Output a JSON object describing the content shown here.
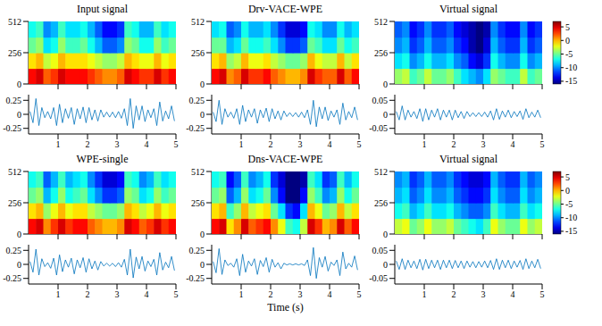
{
  "x_label": "Time (s)",
  "colorbar": {
    "range": [
      -16,
      7
    ],
    "ticks": [
      5,
      0,
      -5,
      -10,
      -15
    ]
  },
  "time_bins": [
    0,
    0.25,
    0.5,
    0.75,
    1,
    1.25,
    1.5,
    1.75,
    2,
    2.25,
    2.5,
    2.75,
    3,
    3.25,
    3.5,
    3.75,
    4,
    4.25,
    4.5,
    4.75,
    5
  ],
  "frequency_bins": [
    0,
    128,
    256,
    384,
    512
  ],
  "waveform_time": [
    0.05,
    0.15,
    0.25,
    0.35,
    0.45,
    0.55,
    0.65,
    0.75,
    0.85,
    0.95,
    1.05,
    1.15,
    1.25,
    1.35,
    1.45,
    1.55,
    1.65,
    1.75,
    1.85,
    1.95,
    2.05,
    2.15,
    2.25,
    2.35,
    2.45,
    2.55,
    2.65,
    2.75,
    2.85,
    2.95,
    3.05,
    3.15,
    3.25,
    3.35,
    3.45,
    3.55,
    3.65,
    3.75,
    3.85,
    3.95,
    4.05,
    4.15,
    4.25,
    4.35,
    4.45,
    4.55,
    4.65,
    4.75,
    4.85,
    4.95
  ],
  "chart_data": [
    {
      "title": "Input signal",
      "spectrogram": {
        "type": "heatmap",
        "xlim": [
          0,
          5
        ],
        "xticks": [
          1,
          2,
          3,
          4,
          5
        ],
        "ylim": [
          0,
          512
        ],
        "yticks": [
          0,
          256,
          512
        ],
        "tick_labels": "y",
        "cells": [
          [
            4,
            5,
            2,
            3,
            5,
            4,
            4,
            4,
            3,
            2,
            1,
            1,
            2,
            5,
            4,
            3,
            3,
            5,
            3,
            4
          ],
          [
            -1,
            0,
            -3,
            -2,
            0,
            -1,
            -1,
            -1,
            -2,
            -3,
            -4,
            -4,
            -3,
            0,
            -1,
            -2,
            -2,
            0,
            -2,
            -1
          ],
          [
            -5,
            -4,
            -8,
            -7,
            -4,
            -6,
            -6,
            -5,
            -7,
            -9,
            -11,
            -11,
            -10,
            -4,
            -5,
            -7,
            -7,
            -4,
            -6,
            -5
          ],
          [
            -7,
            -6,
            -10,
            -9,
            -6,
            -8,
            -8,
            -7,
            -9,
            -11,
            -13,
            -13,
            -12,
            -6,
            -7,
            -9,
            -9,
            -6,
            -8,
            -7
          ]
        ]
      },
      "waveform": {
        "type": "line",
        "color": "#0072bd",
        "xlim": [
          0,
          5
        ],
        "xticks": [
          1,
          2,
          3,
          4,
          5
        ],
        "ylim": [
          -0.35,
          0.35
        ],
        "yticks": [
          -0.25,
          0,
          0.25
        ],
        "values": [
          0.05,
          -0.15,
          0.28,
          -0.2,
          0.12,
          -0.06,
          0.05,
          -0.08,
          0.12,
          -0.2,
          0.18,
          -0.15,
          0.1,
          -0.07,
          0.12,
          -0.18,
          0.1,
          -0.08,
          0.13,
          -0.15,
          0.12,
          -0.1,
          0.08,
          -0.12,
          0.08,
          -0.05,
          0.04,
          -0.05,
          0.04,
          -0.06,
          0.05,
          -0.07,
          0.1,
          -0.2,
          0.28,
          -0.25,
          0.15,
          -0.1,
          0.15,
          -0.13,
          0.08,
          -0.06,
          0.1,
          -0.2,
          0.22,
          -0.12,
          0.06,
          -0.08,
          0.15,
          -0.12
        ]
      }
    },
    {
      "title": "Drv-VACE-WPE",
      "spectrogram": {
        "type": "heatmap",
        "xlim": [
          0,
          5
        ],
        "xticks": [
          1,
          2,
          3,
          4,
          5
        ],
        "ylim": [
          0,
          512
        ],
        "yticks": [
          0,
          256,
          512
        ],
        "tick_labels": "y",
        "cells": [
          [
            4,
            5,
            1,
            2,
            5,
            3,
            3,
            4,
            2,
            1,
            0,
            0,
            1,
            5,
            3,
            2,
            2,
            5,
            2,
            4
          ],
          [
            -1,
            0,
            -4,
            -3,
            0,
            -2,
            -2,
            -1,
            -3,
            -4,
            -5,
            -5,
            -4,
            0,
            -2,
            -3,
            -3,
            0,
            -3,
            -1
          ],
          [
            -5,
            -5,
            -9,
            -8,
            -5,
            -7,
            -7,
            -6,
            -8,
            -10,
            -12,
            -12,
            -11,
            -5,
            -6,
            -8,
            -8,
            -5,
            -7,
            -6
          ],
          [
            -8,
            -7,
            -11,
            -10,
            -7,
            -9,
            -9,
            -8,
            -10,
            -12,
            -14,
            -14,
            -13,
            -7,
            -8,
            -10,
            -10,
            -7,
            -9,
            -8
          ]
        ]
      },
      "waveform": {
        "type": "line",
        "color": "#0072bd",
        "xlim": [
          0,
          5
        ],
        "xticks": [
          1,
          2,
          3,
          4,
          5
        ],
        "ylim": [
          -0.35,
          0.35
        ],
        "yticks": [
          -0.25,
          0,
          0.25
        ],
        "values": [
          0.04,
          -0.13,
          0.25,
          -0.18,
          0.1,
          -0.05,
          0.04,
          -0.07,
          0.1,
          -0.18,
          0.16,
          -0.13,
          0.08,
          -0.05,
          0.1,
          -0.16,
          0.08,
          -0.06,
          0.11,
          -0.13,
          0.1,
          -0.08,
          0.06,
          -0.1,
          0.06,
          -0.04,
          0.03,
          -0.04,
          0.03,
          -0.05,
          0.04,
          -0.06,
          0.08,
          -0.18,
          0.25,
          -0.22,
          0.13,
          -0.08,
          0.13,
          -0.11,
          0.06,
          -0.05,
          0.08,
          -0.18,
          0.2,
          -0.1,
          0.05,
          -0.06,
          0.13,
          -0.1
        ]
      }
    },
    {
      "title": "Virtual signal",
      "spectrogram": {
        "type": "heatmap",
        "xlim": [
          0,
          5
        ],
        "xticks": [
          1,
          2,
          3,
          4,
          5
        ],
        "ylim": [
          0,
          512
        ],
        "yticks": [
          0,
          256,
          512
        ],
        "tick_labels": "y",
        "cells": [
          [
            -4,
            -3,
            -6,
            -5,
            -3,
            -5,
            -5,
            -4,
            -6,
            -8,
            -9,
            -10,
            -8,
            -4,
            -5,
            -6,
            -6,
            -3,
            -6,
            -5
          ],
          [
            -8,
            -7,
            -10,
            -9,
            -7,
            -9,
            -9,
            -8,
            -10,
            -11,
            -13,
            -14,
            -12,
            -7,
            -9,
            -10,
            -10,
            -7,
            -10,
            -9
          ],
          [
            -10,
            -9,
            -12,
            -11,
            -9,
            -11,
            -11,
            -10,
            -12,
            -13,
            -15,
            -16,
            -14,
            -9,
            -11,
            -12,
            -12,
            -9,
            -12,
            -11
          ],
          [
            -11,
            -10,
            -13,
            -12,
            -10,
            -12,
            -12,
            -11,
            -13,
            -14,
            -15,
            -16,
            -15,
            -10,
            -12,
            -13,
            -13,
            -10,
            -13,
            -12
          ]
        ]
      },
      "waveform": {
        "type": "line",
        "color": "#0072bd",
        "xlim": [
          0,
          5
        ],
        "xticks": [
          1,
          2,
          3,
          4,
          5
        ],
        "ylim": [
          -0.07,
          0.07
        ],
        "yticks": [
          -0.05,
          0,
          0.05
        ],
        "values": [
          0.01,
          -0.02,
          0.03,
          -0.02,
          0.015,
          -0.01,
          0.01,
          -0.015,
          0.02,
          -0.025,
          0.02,
          -0.02,
          0.015,
          -0.01,
          0.02,
          -0.02,
          0.015,
          -0.01,
          0.015,
          -0.02,
          0.015,
          -0.012,
          0.01,
          -0.015,
          0.01,
          -0.008,
          0.006,
          -0.008,
          0.006,
          -0.008,
          0.008,
          -0.01,
          0.012,
          -0.02,
          0.02,
          -0.018,
          0.012,
          -0.01,
          0.015,
          -0.012,
          0.01,
          -0.008,
          0.012,
          -0.018,
          0.02,
          -0.012,
          0.008,
          -0.01,
          0.015,
          -0.012
        ]
      }
    },
    {
      "title": "WPE-single",
      "spectrogram": {
        "type": "heatmap",
        "xlim": [
          0,
          5
        ],
        "xticks": [
          1,
          2,
          3,
          4,
          5
        ],
        "ylim": [
          0,
          512
        ],
        "yticks": [
          0,
          256,
          512
        ],
        "tick_labels": "y",
        "cells": [
          [
            4,
            5,
            1,
            3,
            5,
            3,
            4,
            4,
            2,
            1,
            0,
            0,
            1,
            5,
            4,
            2,
            3,
            5,
            3,
            4
          ],
          [
            -1,
            0,
            -4,
            -2,
            0,
            -2,
            -1,
            -1,
            -3,
            -4,
            -5,
            -5,
            -4,
            0,
            -1,
            -3,
            -2,
            0,
            -2,
            -1
          ],
          [
            -5,
            -4,
            -9,
            -7,
            -4,
            -7,
            -6,
            -5,
            -8,
            -10,
            -12,
            -12,
            -11,
            -4,
            -5,
            -8,
            -7,
            -4,
            -6,
            -5
          ],
          [
            -7,
            -6,
            -11,
            -9,
            -6,
            -9,
            -8,
            -7,
            -10,
            -12,
            -14,
            -14,
            -13,
            -6,
            -7,
            -10,
            -9,
            -6,
            -8,
            -7
          ]
        ]
      },
      "waveform": {
        "type": "line",
        "color": "#0072bd",
        "xlim": [
          0,
          5
        ],
        "xticks": [
          1,
          2,
          3,
          4,
          5
        ],
        "ylim": [
          -0.35,
          0.35
        ],
        "yticks": [
          -0.25,
          0,
          0.25
        ],
        "values": [
          0.05,
          -0.14,
          0.27,
          -0.19,
          0.1,
          -0.04,
          0.03,
          -0.07,
          0.11,
          -0.19,
          0.17,
          -0.13,
          0.08,
          -0.05,
          0.11,
          -0.17,
          0.08,
          -0.06,
          0.12,
          -0.14,
          0.1,
          -0.08,
          0.06,
          -0.1,
          0.05,
          -0.03,
          0.02,
          -0.03,
          0.02,
          -0.04,
          0.03,
          -0.05,
          0.09,
          -0.19,
          0.27,
          -0.24,
          0.13,
          -0.08,
          0.14,
          -0.12,
          0.06,
          -0.04,
          0.09,
          -0.19,
          0.21,
          -0.1,
          0.04,
          -0.06,
          0.14,
          -0.11
        ]
      }
    },
    {
      "title": "Dns-VACE-WPE",
      "spectrogram": {
        "type": "heatmap",
        "xlim": [
          0,
          5
        ],
        "xticks": [
          1,
          2,
          3,
          4,
          5
        ],
        "ylim": [
          0,
          512
        ],
        "yticks": [
          0,
          256,
          512
        ],
        "tick_labels": "y",
        "cells": [
          [
            4,
            5,
            -1,
            1,
            5,
            2,
            3,
            4,
            1,
            -2,
            -6,
            -7,
            -3,
            5,
            3,
            0,
            1,
            5,
            2,
            4
          ],
          [
            -1,
            0,
            -6,
            -4,
            0,
            -3,
            -2,
            -1,
            -5,
            -8,
            -12,
            -13,
            -8,
            0,
            -2,
            -5,
            -4,
            0,
            -3,
            -1
          ],
          [
            -5,
            -4,
            -11,
            -9,
            -4,
            -8,
            -7,
            -5,
            -10,
            -13,
            -16,
            -16,
            -13,
            -4,
            -6,
            -10,
            -9,
            -4,
            -7,
            -5
          ],
          [
            -7,
            -6,
            -13,
            -11,
            -6,
            -10,
            -9,
            -7,
            -12,
            -14,
            -16,
            -16,
            -15,
            -6,
            -8,
            -12,
            -11,
            -6,
            -9,
            -7
          ]
        ]
      },
      "waveform": {
        "type": "line",
        "color": "#0072bd",
        "xlim": [
          0,
          5
        ],
        "xticks": [
          1,
          2,
          3,
          4,
          5
        ],
        "ylim": [
          -0.35,
          0.35
        ],
        "yticks": [
          -0.25,
          0,
          0.25
        ],
        "values": [
          0.05,
          -0.15,
          0.28,
          -0.18,
          0.08,
          -0.02,
          0.02,
          -0.05,
          0.1,
          -0.2,
          0.18,
          -0.14,
          0.06,
          -0.03,
          0.1,
          -0.18,
          0.07,
          -0.04,
          0.12,
          -0.14,
          0.09,
          -0.05,
          0.03,
          -0.08,
          0.02,
          -0.01,
          0.01,
          -0.01,
          0.01,
          -0.01,
          0.01,
          -0.02,
          0.08,
          -0.2,
          0.3,
          -0.25,
          0.12,
          -0.05,
          0.14,
          -0.12,
          0.04,
          -0.02,
          0.08,
          -0.2,
          0.22,
          -0.08,
          0.02,
          -0.05,
          0.15,
          -0.1
        ]
      }
    },
    {
      "title": "Virtual signal",
      "spectrogram": {
        "type": "heatmap",
        "xlim": [
          0,
          5
        ],
        "xticks": [
          1,
          2,
          3,
          4,
          5
        ],
        "ylim": [
          0,
          512
        ],
        "yticks": [
          0,
          256,
          512
        ],
        "tick_labels": "y",
        "cells": [
          [
            -3,
            -2,
            -5,
            -4,
            -2,
            -4,
            -4,
            -3,
            -5,
            -6,
            -7,
            -8,
            -6,
            -2,
            -4,
            -5,
            -5,
            -2,
            -4,
            -3
          ],
          [
            -7,
            -6,
            -9,
            -8,
            -6,
            -8,
            -8,
            -7,
            -9,
            -10,
            -11,
            -11,
            -10,
            -6,
            -8,
            -9,
            -9,
            -6,
            -8,
            -7
          ],
          [
            -9,
            -8,
            -11,
            -10,
            -8,
            -10,
            -10,
            -9,
            -11,
            -12,
            -13,
            -13,
            -12,
            -8,
            -10,
            -11,
            -11,
            -8,
            -10,
            -9
          ],
          [
            -10,
            -9,
            -12,
            -11,
            -9,
            -11,
            -11,
            -10,
            -12,
            -13,
            -14,
            -14,
            -13,
            -9,
            -11,
            -12,
            -12,
            -9,
            -11,
            -10
          ]
        ]
      },
      "waveform": {
        "type": "line",
        "color": "#0072bd",
        "xlim": [
          0,
          5
        ],
        "xticks": [
          1,
          2,
          3,
          4,
          5
        ],
        "ylim": [
          -0.07,
          0.07
        ],
        "yticks": [
          -0.05,
          0,
          0.05
        ],
        "values": [
          0.012,
          -0.018,
          0.02,
          -0.018,
          0.015,
          -0.012,
          0.012,
          -0.015,
          0.018,
          -0.02,
          0.018,
          -0.015,
          0.015,
          -0.012,
          0.015,
          -0.018,
          0.015,
          -0.012,
          0.015,
          -0.015,
          0.014,
          -0.012,
          0.012,
          -0.015,
          0.012,
          -0.01,
          0.01,
          -0.012,
          0.01,
          -0.01,
          0.012,
          -0.012,
          0.014,
          -0.018,
          0.02,
          -0.018,
          0.015,
          -0.012,
          0.015,
          -0.015,
          0.012,
          -0.01,
          0.014,
          -0.018,
          0.02,
          -0.015,
          0.012,
          -0.012,
          0.018,
          -0.015
        ]
      }
    }
  ]
}
